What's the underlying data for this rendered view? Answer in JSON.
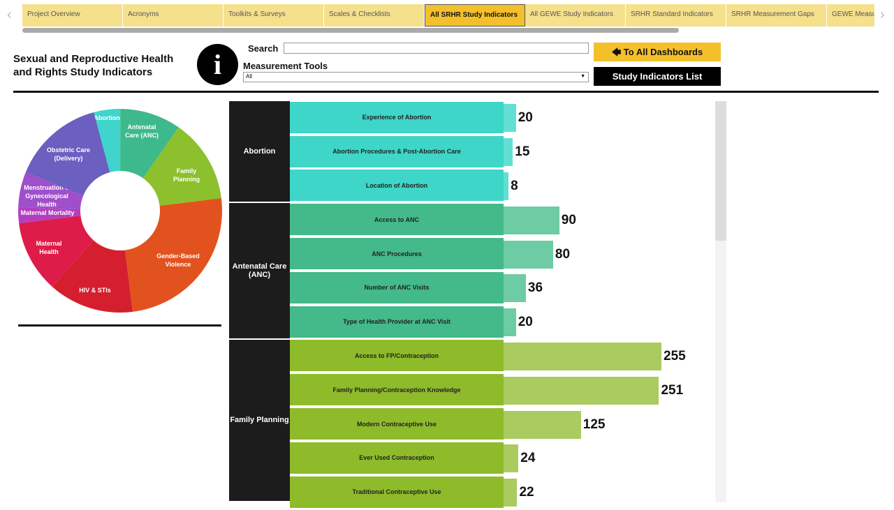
{
  "tabs": [
    "Project Overview",
    "Acronyms",
    "Toolkits & Surveys",
    "Scales & Checklists",
    "All SRHR Study Indicators",
    "All GEWE Study Indicators",
    "SRHR Standard Indicators",
    "SRHR Measurement Gaps",
    "GEWE Measu"
  ],
  "active_tab": 4,
  "header": {
    "title_line1": "Sexual and Reproductive Health",
    "title_line2": "and Rights Study Indicators",
    "search_label": "Search",
    "search_value": "",
    "tools_label": "Measurement Tools",
    "tools_value": "All",
    "btn_dashboards": "🡄 To All Dashboards",
    "btn_list": "Study Indicators List"
  },
  "colors": {
    "accent": "#f3c02c",
    "abortion": "#3ed6c8",
    "anc": "#44b98a",
    "fp": "#8ebb2a"
  },
  "chart_data": [
    {
      "type": "pie",
      "note_units": "percent of donut (estimated)",
      "categories": [
        "Abortion",
        "Antenatal Care (ANC)",
        "Family Planning",
        "Gender-Based Violence",
        "HIV & STIs",
        "Maternal Health",
        "Maternal Mortality",
        "Menstruation & Gynecological Health",
        "Obstetric Care (Delivery)"
      ],
      "values": [
        4.2,
        9.7,
        13.3,
        25,
        13.6,
        11.4,
        2.5,
        5.6,
        14.7
      ],
      "colors": [
        "#3fd4cc",
        "#3db98c",
        "#8cc02c",
        "#e2521f",
        "#d51f2e",
        "#de1c4a",
        "#b23fc0",
        "#9e4fc9",
        "#6b5fc0"
      ]
    },
    {
      "type": "bar",
      "orientation": "horizontal",
      "groups": [
        {
          "name": "Abortion",
          "color": "#3ed6c8",
          "bar_color": "#62dfd3",
          "items": [
            [
              "Experience of Abortion",
              20
            ],
            [
              "Abortion Procedures & Post-Abortion Care",
              15
            ],
            [
              "Location of Abortion",
              8
            ]
          ]
        },
        {
          "name": "Antenatal Care (ANC)",
          "color": "#44b98a",
          "bar_color": "#6dcca3",
          "items": [
            [
              "Access to ANC",
              90
            ],
            [
              "ANC Procedures",
              80
            ],
            [
              "Number of ANC Visits",
              36
            ],
            [
              "Type of Health Provider at ANC Visit",
              20
            ]
          ]
        },
        {
          "name": "Family Planning",
          "color": "#8ebb2a",
          "bar_color": "#aacb60",
          "items": [
            [
              "Access to FP/Contraception",
              255
            ],
            [
              "Family Planning/Contraception Knowledge",
              251
            ],
            [
              "Modern Contraceptive Use",
              125
            ],
            [
              "Ever Used Contraception",
              24
            ],
            [
              "Traditional Contraceptive Use",
              22
            ]
          ]
        }
      ]
    }
  ]
}
